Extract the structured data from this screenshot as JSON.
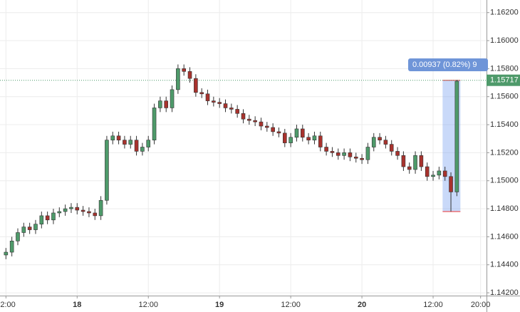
{
  "chart_data": {
    "type": "candlestick",
    "open": [
      1.1447,
      1.1449,
      1.1457,
      1.1463,
      1.1467,
      1.1465,
      1.1469,
      1.1475,
      1.1472,
      1.1477,
      1.1478,
      1.148,
      1.1481,
      1.1479,
      1.1478,
      1.1477,
      1.1475,
      1.1486,
      1.1529,
      1.1532,
      1.1529,
      1.1526,
      1.1529,
      1.1521,
      1.1524,
      1.1529,
      1.1552,
      1.1557,
      1.1552,
      1.1565,
      1.158,
      1.1578,
      1.1573,
      1.1563,
      1.1562,
      1.1557,
      1.1556,
      1.1555,
      1.1552,
      1.1551,
      1.1548,
      1.1544,
      1.1543,
      1.1542,
      1.1539,
      1.1538,
      1.1535,
      1.1534,
      1.1527,
      1.1531,
      1.1537,
      1.1531,
      1.1529,
      1.1532,
      1.1524,
      1.1521,
      1.152,
      1.1518,
      1.152,
      1.1517,
      1.1516,
      1.1515,
      1.1524,
      1.1531,
      1.1529,
      1.1526,
      1.1521,
      1.1518,
      1.151,
      1.1508,
      1.1518,
      1.151,
      1.1503,
      1.1504,
      1.1507,
      1.1503,
      1.1492
    ],
    "high": [
      1.1452,
      1.146,
      1.1466,
      1.147,
      1.147,
      1.1472,
      1.1478,
      1.1478,
      1.148,
      1.1481,
      1.1483,
      1.1484,
      1.1484,
      1.1482,
      1.1481,
      1.148,
      1.1489,
      1.1532,
      1.1535,
      1.1535,
      1.1532,
      1.1532,
      1.1532,
      1.1527,
      1.1532,
      1.1555,
      1.156,
      1.156,
      1.1568,
      1.1583,
      1.1583,
      1.1581,
      1.1576,
      1.1566,
      1.1565,
      1.156,
      1.1559,
      1.1558,
      1.1555,
      1.1554,
      1.1551,
      1.1547,
      1.1546,
      1.1545,
      1.1542,
      1.1541,
      1.1538,
      1.1537,
      1.1534,
      1.154,
      1.154,
      1.1534,
      1.1535,
      1.1535,
      1.1527,
      1.1524,
      1.1523,
      1.1523,
      1.1523,
      1.152,
      1.1519,
      1.1527,
      1.1534,
      1.1534,
      1.1532,
      1.1529,
      1.1524,
      1.1521,
      1.1513,
      1.1521,
      1.1521,
      1.1513,
      1.1507,
      1.151,
      1.151,
      1.1506,
      1.1572
    ],
    "low": [
      1.1444,
      1.1446,
      1.1454,
      1.146,
      1.1462,
      1.1462,
      1.1466,
      1.1469,
      1.1469,
      1.1474,
      1.1475,
      1.1477,
      1.1476,
      1.1475,
      1.1474,
      1.1472,
      1.1472,
      1.1483,
      1.1526,
      1.1526,
      1.1523,
      1.1523,
      1.1518,
      1.1518,
      1.1521,
      1.1526,
      1.1549,
      1.1549,
      1.1549,
      1.1562,
      1.1575,
      1.157,
      1.156,
      1.1559,
      1.1554,
      1.1553,
      1.1552,
      1.1549,
      1.1548,
      1.1545,
      1.1541,
      1.154,
      1.1539,
      1.1536,
      1.1535,
      1.1532,
      1.1531,
      1.1524,
      1.1524,
      1.1528,
      1.1528,
      1.1526,
      1.1526,
      1.1521,
      1.1518,
      1.1517,
      1.1515,
      1.1515,
      1.1514,
      1.1513,
      1.1512,
      1.1512,
      1.1521,
      1.1526,
      1.1523,
      1.1518,
      1.1515,
      1.1507,
      1.1505,
      1.1505,
      1.1507,
      1.15,
      1.15,
      1.1501,
      1.15,
      1.1478,
      1.1489
    ],
    "close": [
      1.1449,
      1.1457,
      1.1463,
      1.1467,
      1.1465,
      1.1469,
      1.1475,
      1.1472,
      1.1477,
      1.1478,
      1.148,
      1.1481,
      1.1479,
      1.1478,
      1.1477,
      1.1475,
      1.1486,
      1.1529,
      1.1532,
      1.1529,
      1.1526,
      1.1529,
      1.1521,
      1.1524,
      1.1529,
      1.1552,
      1.1557,
      1.1552,
      1.1565,
      1.158,
      1.1578,
      1.1573,
      1.1563,
      1.1562,
      1.1557,
      1.1556,
      1.1555,
      1.1552,
      1.1551,
      1.1548,
      1.1544,
      1.1543,
      1.1542,
      1.1539,
      1.1538,
      1.1535,
      1.1534,
      1.1527,
      1.1531,
      1.1537,
      1.1531,
      1.1529,
      1.1532,
      1.1524,
      1.1521,
      1.152,
      1.1518,
      1.152,
      1.1517,
      1.1516,
      1.1515,
      1.1524,
      1.1531,
      1.1529,
      1.1526,
      1.1521,
      1.1518,
      1.151,
      1.1508,
      1.1518,
      1.151,
      1.1503,
      1.1504,
      1.1507,
      1.1503,
      1.1492,
      1.1571
    ],
    "up_color": "#4e9a6a",
    "down_color": "#a8322d",
    "ylim": [
      1.1418,
      1.1629
    ],
    "yticks": [
      {
        "value": 1.142,
        "label": "1.14200"
      },
      {
        "value": 1.144,
        "label": "1.14400"
      },
      {
        "value": 1.146,
        "label": "1.14600"
      },
      {
        "value": 1.148,
        "label": "1.14800"
      },
      {
        "value": 1.15,
        "label": "1.15000"
      },
      {
        "value": 1.152,
        "label": "1.15200"
      },
      {
        "value": 1.154,
        "label": "1.15400"
      },
      {
        "value": 1.156,
        "label": "1.15600"
      },
      {
        "value": 1.158,
        "label": "1.15800"
      },
      {
        "value": 1.16,
        "label": "1.16000"
      },
      {
        "value": 1.162,
        "label": "1.16200"
      }
    ],
    "xlim": [
      -1,
      81
    ],
    "xticks": [
      {
        "value": 0,
        "label": "2:00"
      },
      {
        "value": 12,
        "label": "18"
      },
      {
        "value": 24,
        "label": "12:00"
      },
      {
        "value": 36,
        "label": "19"
      },
      {
        "value": 48,
        "label": "12:00"
      },
      {
        "value": 60,
        "label": "20"
      },
      {
        "value": 72,
        "label": "12:00"
      },
      {
        "value": 80,
        "label": "20:00"
      }
    ],
    "grid": true,
    "last_price": {
      "value": 1.15717,
      "label": "1.15717"
    },
    "measure": {
      "from": 1.1478,
      "to": 1.15717,
      "label": "0.00937 (0.82%) 9"
    }
  }
}
